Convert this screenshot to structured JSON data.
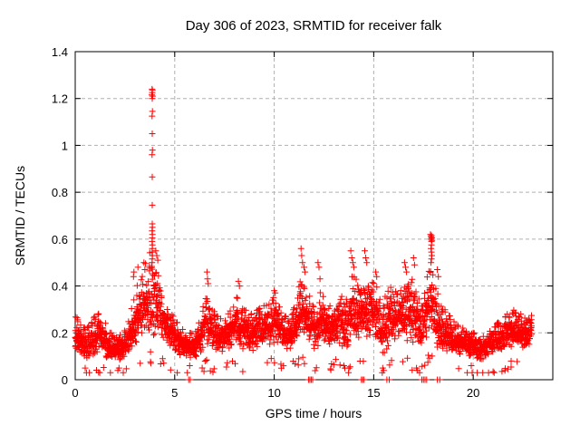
{
  "chart_data": {
    "type": "scatter",
    "title": "Day 306 of 2023, SRMTID for receiver falk",
    "xlabel": "GPS time / hours",
    "ylabel": "SRMTID / TECUs",
    "xlim": [
      0,
      24
    ],
    "ylim": [
      0,
      1.4
    ],
    "xticks": {
      "values": [
        0,
        5,
        10,
        15,
        20
      ],
      "labels": [
        "0",
        "5",
        "10",
        "15",
        "20"
      ]
    },
    "yticks": {
      "values": [
        0,
        0.2,
        0.4,
        0.6,
        0.8,
        1.0,
        1.2,
        1.4
      ],
      "labels": [
        "0",
        "0.2",
        "0.4",
        "0.6",
        "0.8",
        "1",
        "1.2",
        "1.4"
      ]
    },
    "grid": {
      "show": true,
      "style": "dashed",
      "color": "#b0b0b0"
    },
    "legend": {
      "show": false
    },
    "marker": {
      "shape": "plus",
      "size": 7,
      "color": "#ff0000"
    },
    "axis_color": "#000000",
    "background": "#ffffff",
    "render_seed": 306,
    "generation": {
      "step_hours": 0.015,
      "points_per_step": 2,
      "x_end": 22.95
    },
    "band_envelope": [
      [
        0.0,
        0.1,
        0.28
      ],
      [
        0.3,
        0.09,
        0.25
      ],
      [
        0.6,
        0.06,
        0.22
      ],
      [
        1.0,
        0.09,
        0.28
      ],
      [
        1.3,
        0.1,
        0.3
      ],
      [
        1.6,
        0.08,
        0.22
      ],
      [
        2.0,
        0.07,
        0.18
      ],
      [
        2.4,
        0.07,
        0.2
      ],
      [
        2.8,
        0.1,
        0.3
      ],
      [
        3.1,
        0.13,
        0.4
      ],
      [
        3.4,
        0.15,
        0.45
      ],
      [
        3.7,
        0.15,
        0.55
      ],
      [
        3.9,
        0.15,
        0.6
      ],
      [
        4.1,
        0.16,
        0.5
      ],
      [
        4.4,
        0.14,
        0.38
      ],
      [
        4.8,
        0.11,
        0.3
      ],
      [
        5.2,
        0.09,
        0.24
      ],
      [
        5.6,
        0.08,
        0.2
      ],
      [
        6.0,
        0.08,
        0.2
      ],
      [
        6.3,
        0.1,
        0.27
      ],
      [
        6.6,
        0.12,
        0.38
      ],
      [
        6.9,
        0.11,
        0.3
      ],
      [
        7.3,
        0.1,
        0.26
      ],
      [
        7.7,
        0.11,
        0.3
      ],
      [
        8.1,
        0.13,
        0.36
      ],
      [
        8.5,
        0.11,
        0.3
      ],
      [
        8.9,
        0.1,
        0.28
      ],
      [
        9.3,
        0.12,
        0.32
      ],
      [
        9.7,
        0.13,
        0.33
      ],
      [
        10.1,
        0.13,
        0.36
      ],
      [
        10.5,
        0.1,
        0.27
      ],
      [
        10.9,
        0.11,
        0.28
      ],
      [
        11.3,
        0.14,
        0.44
      ],
      [
        11.6,
        0.13,
        0.4
      ],
      [
        12.0,
        0.11,
        0.32
      ],
      [
        12.4,
        0.12,
        0.4
      ],
      [
        12.8,
        0.11,
        0.33
      ],
      [
        13.2,
        0.13,
        0.36
      ],
      [
        13.6,
        0.08,
        0.38
      ],
      [
        14.0,
        0.13,
        0.46
      ],
      [
        14.4,
        0.15,
        0.42
      ],
      [
        14.8,
        0.13,
        0.46
      ],
      [
        15.2,
        0.13,
        0.4
      ],
      [
        15.5,
        0.07,
        0.35
      ],
      [
        15.9,
        0.13,
        0.4
      ],
      [
        16.3,
        0.15,
        0.38
      ],
      [
        16.7,
        0.13,
        0.45
      ],
      [
        17.1,
        0.09,
        0.42
      ],
      [
        17.4,
        0.11,
        0.33
      ],
      [
        17.8,
        0.15,
        0.5
      ],
      [
        18.1,
        0.11,
        0.42
      ],
      [
        18.5,
        0.09,
        0.32
      ],
      [
        18.9,
        0.1,
        0.26
      ],
      [
        19.3,
        0.09,
        0.23
      ],
      [
        19.7,
        0.08,
        0.21
      ],
      [
        20.1,
        0.08,
        0.2
      ],
      [
        20.5,
        0.07,
        0.19
      ],
      [
        20.9,
        0.09,
        0.22
      ],
      [
        21.3,
        0.1,
        0.25
      ],
      [
        21.7,
        0.11,
        0.28
      ],
      [
        22.1,
        0.12,
        0.3
      ],
      [
        22.5,
        0.12,
        0.28
      ],
      [
        22.9,
        0.14,
        0.3
      ]
    ],
    "spike_points": [
      [
        3.86,
        1.24
      ],
      [
        3.88,
        1.235
      ],
      [
        3.87,
        1.225
      ],
      [
        3.85,
        1.215
      ],
      [
        3.89,
        1.21
      ],
      [
        3.87,
        1.2
      ],
      [
        3.88,
        1.145
      ],
      [
        3.86,
        1.125
      ],
      [
        3.87,
        1.05
      ],
      [
        3.88,
        0.98
      ],
      [
        3.86,
        0.96
      ],
      [
        3.87,
        0.865
      ],
      [
        3.87,
        0.745
      ],
      [
        3.87,
        0.665
      ],
      [
        3.88,
        0.65
      ],
      [
        3.86,
        0.635
      ],
      [
        3.88,
        0.62
      ],
      [
        3.87,
        0.605
      ],
      [
        3.86,
        0.59
      ],
      [
        3.88,
        0.575
      ],
      [
        3.87,
        0.56
      ],
      [
        3.86,
        0.545
      ],
      [
        3.88,
        0.53
      ],
      [
        3.87,
        0.515
      ],
      [
        3.86,
        0.5
      ],
      [
        2.95,
        0.46
      ],
      [
        2.93,
        0.44
      ],
      [
        3.15,
        0.48
      ],
      [
        3.45,
        0.5
      ],
      [
        3.5,
        0.47
      ],
      [
        4.05,
        0.55
      ],
      [
        4.1,
        0.53
      ],
      [
        4.15,
        0.51
      ],
      [
        6.62,
        0.46
      ],
      [
        6.65,
        0.43
      ],
      [
        6.68,
        0.41
      ],
      [
        8.2,
        0.42
      ],
      [
        8.25,
        0.4
      ],
      [
        10.0,
        0.38
      ],
      [
        10.05,
        0.37
      ],
      [
        11.35,
        0.56
      ],
      [
        11.38,
        0.53
      ],
      [
        11.42,
        0.5
      ],
      [
        11.5,
        0.48
      ],
      [
        11.55,
        0.46
      ],
      [
        12.2,
        0.5
      ],
      [
        12.25,
        0.48
      ],
      [
        12.3,
        0.43
      ],
      [
        13.85,
        0.55
      ],
      [
        13.9,
        0.52
      ],
      [
        13.95,
        0.5
      ],
      [
        14.0,
        0.48
      ],
      [
        14.55,
        0.55
      ],
      [
        14.6,
        0.52
      ],
      [
        14.65,
        0.5
      ],
      [
        15.1,
        0.46
      ],
      [
        15.15,
        0.44
      ],
      [
        16.55,
        0.5
      ],
      [
        16.6,
        0.48
      ],
      [
        16.65,
        0.46
      ],
      [
        17.0,
        0.52
      ],
      [
        17.05,
        0.49
      ],
      [
        17.85,
        0.62
      ],
      [
        17.9,
        0.615
      ],
      [
        17.88,
        0.61
      ],
      [
        17.92,
        0.605
      ],
      [
        17.87,
        0.6
      ],
      [
        17.93,
        0.595
      ],
      [
        17.9,
        0.59
      ],
      [
        17.9,
        0.575
      ],
      [
        17.88,
        0.56
      ],
      [
        17.9,
        0.545
      ],
      [
        17.92,
        0.53
      ],
      [
        17.9,
        0.515
      ],
      [
        17.88,
        0.5
      ],
      [
        18.2,
        0.47
      ],
      [
        18.25,
        0.44
      ],
      [
        0.5,
        0.05
      ],
      [
        2.2,
        0.05
      ],
      [
        5.75,
        0.06
      ],
      [
        13.5,
        0.06
      ],
      [
        13.55,
        0.05
      ],
      [
        15.45,
        0.05
      ],
      [
        15.5,
        0.04
      ],
      [
        17.15,
        0.05
      ],
      [
        17.2,
        0.04
      ],
      [
        19.9,
        0.06
      ]
    ],
    "zero_points": [
      5.7,
      5.78,
      11.72,
      11.79,
      11.86,
      11.93,
      14.38,
      14.45,
      14.52,
      15.66,
      15.78,
      17.42,
      17.5,
      17.58,
      17.66,
      18.2,
      18.32
    ]
  }
}
